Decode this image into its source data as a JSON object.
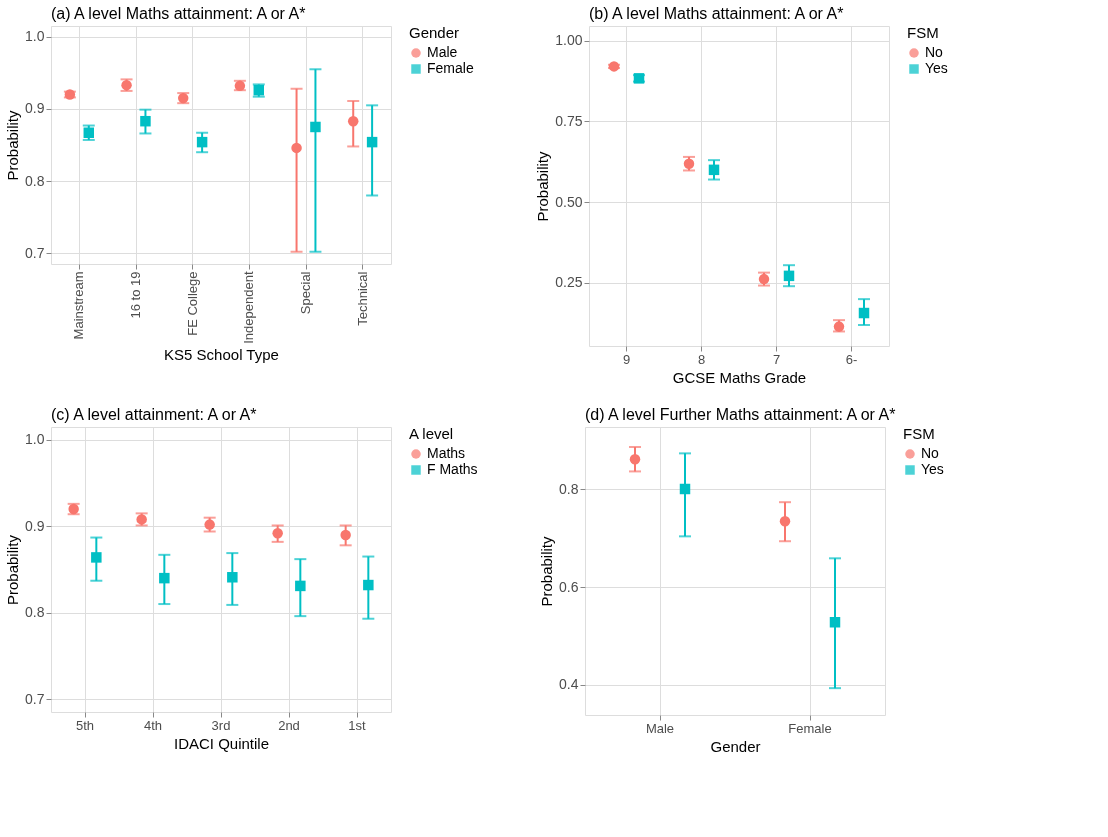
{
  "chart_data": [
    {
      "type": "scatter",
      "title": "(a) A level Maths attainment: A or A*",
      "xlabel": "KS5 School Type",
      "ylabel": "Probability",
      "legend_title": "Gender",
      "legend": "right",
      "grid": true,
      "categories": [
        "Mainstream",
        "16 to 19",
        "FE College",
        "Independent",
        "Special",
        "Technical"
      ],
      "ylim": [
        0.685,
        1.015
      ],
      "yticks": [
        0.7,
        0.8,
        0.9,
        {
          "value": 1.0,
          "label": "1.0"
        }
      ],
      "series": [
        {
          "name": "Male",
          "color": "#f8766d",
          "marker": "circle",
          "values": [
            0.92,
            0.933,
            0.915,
            0.932,
            0.846,
            0.883
          ],
          "errors": [
            [
              0.916,
              0.924
            ],
            [
              0.925,
              0.941
            ],
            [
              0.908,
              0.922
            ],
            [
              0.926,
              0.939
            ],
            [
              0.702,
              0.928
            ],
            [
              0.848,
              0.911
            ]
          ]
        },
        {
          "name": "Female",
          "color": "#00bfc4",
          "marker": "square",
          "values": [
            0.867,
            0.883,
            0.854,
            0.926,
            0.875,
            0.854
          ],
          "errors": [
            [
              0.857,
              0.877
            ],
            [
              0.866,
              0.899
            ],
            [
              0.84,
              0.867
            ],
            [
              0.917,
              0.934
            ],
            [
              0.702,
              0.955
            ],
            [
              0.78,
              0.905
            ]
          ]
        }
      ]
    },
    {
      "type": "scatter",
      "title": "(b) A level Maths attainment: A or A*",
      "xlabel": "GCSE Maths Grade",
      "ylabel": "Probability",
      "legend_title": "FSM",
      "legend": "right",
      "grid": true,
      "categories": [
        "9",
        "8",
        "7",
        "6-"
      ],
      "ylim": [
        0.055,
        1.045
      ],
      "yticks": [
        {
          "value": 0.25,
          "label": "0.25"
        },
        {
          "value": 0.5,
          "label": "0.50"
        },
        {
          "value": 0.75,
          "label": "0.75"
        },
        {
          "value": 1.0,
          "label": "1.00"
        }
      ],
      "series": [
        {
          "name": "No",
          "color": "#f8766d",
          "marker": "circle",
          "values": [
            0.92,
            0.619,
            0.262,
            0.115
          ],
          "errors": [
            [
              0.915,
              0.925
            ],
            [
              0.598,
              0.64
            ],
            [
              0.242,
              0.282
            ],
            [
              0.1,
              0.135
            ]
          ]
        },
        {
          "name": "Yes",
          "color": "#00bfc4",
          "marker": "square",
          "values": [
            0.883,
            0.6,
            0.272,
            0.157
          ],
          "errors": [
            [
              0.873,
              0.893
            ],
            [
              0.57,
              0.63
            ],
            [
              0.24,
              0.305
            ],
            [
              0.12,
              0.2
            ]
          ]
        }
      ]
    },
    {
      "type": "scatter",
      "title": "(c) A level attainment: A or A*",
      "xlabel": "IDACI Quintile",
      "ylabel": "Probability",
      "legend_title": "A level",
      "legend": "right",
      "grid": true,
      "categories": [
        "5th",
        "4th",
        "3rd",
        "2nd",
        "1st"
      ],
      "ylim": [
        0.685,
        1.015
      ],
      "yticks": [
        0.7,
        0.8,
        0.9,
        {
          "value": 1.0,
          "label": "1.0"
        }
      ],
      "series": [
        {
          "name": "Maths",
          "color": "#f8766d",
          "marker": "circle",
          "values": [
            0.92,
            0.908,
            0.902,
            0.892,
            0.89
          ],
          "errors": [
            [
              0.914,
              0.926
            ],
            [
              0.901,
              0.915
            ],
            [
              0.894,
              0.91
            ],
            [
              0.882,
              0.901
            ],
            [
              0.878,
              0.901
            ]
          ]
        },
        {
          "name": "F Maths",
          "color": "#00bfc4",
          "marker": "square",
          "values": [
            0.864,
            0.84,
            0.841,
            0.831,
            0.832
          ],
          "errors": [
            [
              0.837,
              0.887
            ],
            [
              0.81,
              0.867
            ],
            [
              0.809,
              0.869
            ],
            [
              0.796,
              0.862
            ],
            [
              0.793,
              0.865
            ]
          ]
        }
      ]
    },
    {
      "type": "scatter",
      "title": "(d) A level Further Maths attainment: A or A*",
      "xlabel": "Gender",
      "ylabel": "Probability",
      "legend_title": "FSM",
      "legend": "right",
      "grid": true,
      "categories": [
        "Male",
        "Female"
      ],
      "ylim": [
        0.338,
        0.928
      ],
      "yticks": [
        0.4,
        0.6,
        0.8
      ],
      "series": [
        {
          "name": "No",
          "color": "#f8766d",
          "marker": "circle",
          "values": [
            0.862,
            0.735
          ],
          "errors": [
            [
              0.837,
              0.887
            ],
            [
              0.694,
              0.774
            ]
          ]
        },
        {
          "name": "Yes",
          "color": "#00bfc4",
          "marker": "square",
          "values": [
            0.801,
            0.528
          ],
          "errors": [
            [
              0.704,
              0.874
            ],
            [
              0.393,
              0.659
            ]
          ]
        }
      ]
    }
  ]
}
